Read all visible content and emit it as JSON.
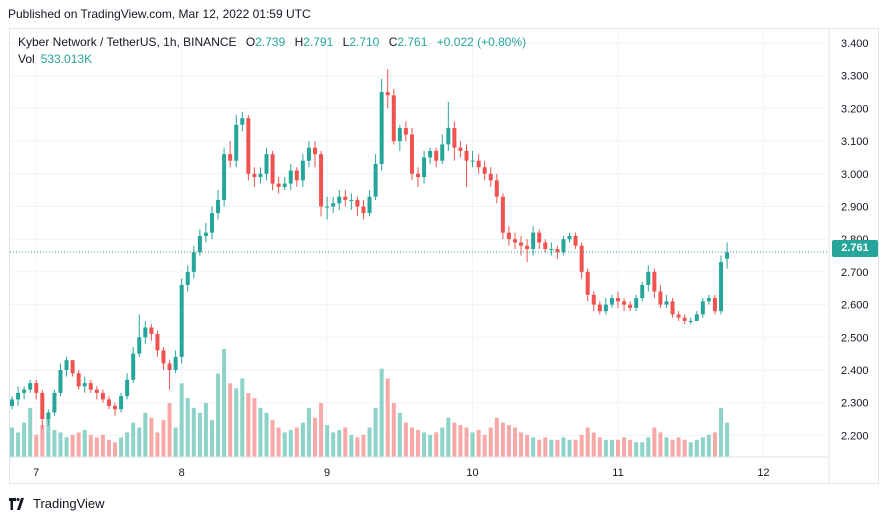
{
  "published": "Published on TradingView.com, Mar 12, 2022 01:59 UTC",
  "legend": {
    "symbol": "Kyber Network / TetherUS, 1h, BINANCE",
    "o_label": "O",
    "o_value": "2.739",
    "h_label": "H",
    "h_value": "2.791",
    "l_label": "L",
    "l_value": "2.710",
    "c_label": "C",
    "c_value": "2.761",
    "change": "+0.022 (+0.80%)",
    "vol_label": "Vol",
    "vol_value": "533.013K"
  },
  "last_price_label": "2.761",
  "branding": "TradingView",
  "colors": {
    "up": "#26a69a",
    "down": "#ef5350",
    "grid": "#f0f3fa",
    "vol_up": "#8dd3c9",
    "vol_down": "#f7a9a7"
  },
  "chart_data": {
    "type": "candlestick",
    "y_ticks": [
      "3.400",
      "3.300",
      "3.200",
      "3.100",
      "3.000",
      "2.900",
      "2.800",
      "2.700",
      "2.600",
      "2.500",
      "2.400",
      "2.300",
      "2.200"
    ],
    "ylim": [
      2.11,
      3.44
    ],
    "x_ticks": [
      {
        "label": "7",
        "index": 4
      },
      {
        "label": "8",
        "index": 28
      },
      {
        "label": "9",
        "index": 52
      },
      {
        "label": "10",
        "index": 76
      },
      {
        "label": "11",
        "index": 100
      },
      {
        "label": "12",
        "index": 124
      }
    ],
    "last_price": 2.761,
    "close": [
      2.31,
      2.33,
      2.34,
      2.36,
      2.33,
      2.25,
      2.27,
      2.33,
      2.4,
      2.43,
      2.39,
      2.35,
      2.36,
      2.34,
      2.33,
      2.31,
      2.29,
      2.28,
      2.32,
      2.37,
      2.45,
      2.5,
      2.53,
      2.51,
      2.46,
      2.42,
      2.4,
      2.44,
      2.66,
      2.7,
      2.76,
      2.81,
      2.82,
      2.88,
      2.92,
      3.06,
      3.04,
      3.15,
      3.17,
      3.0,
      2.99,
      3.0,
      3.06,
      2.97,
      2.96,
      2.97,
      3.01,
      2.98,
      3.04,
      3.08,
      3.06,
      2.9,
      2.9,
      2.91,
      2.93,
      2.92,
      2.92,
      2.9,
      2.88,
      2.93,
      3.03,
      3.25,
      3.24,
      3.1,
      3.14,
      3.12,
      3.0,
      2.99,
      3.05,
      3.07,
      3.04,
      3.09,
      3.14,
      3.08,
      3.07,
      3.04,
      3.04,
      3.02,
      3.0,
      2.98,
      2.93,
      2.82,
      2.8,
      2.79,
      2.78,
      2.77,
      2.82,
      2.79,
      2.77,
      2.77,
      2.76,
      2.8,
      2.81,
      2.78,
      2.7,
      2.63,
      2.6,
      2.58,
      2.6,
      2.62,
      2.61,
      2.6,
      2.59,
      2.62,
      2.66,
      2.7,
      2.64,
      2.6,
      2.61,
      2.57,
      2.56,
      2.55,
      2.55,
      2.57,
      2.61,
      2.62,
      2.58,
      2.73,
      2.76
    ],
    "open": [
      2.29,
      2.31,
      2.33,
      2.34,
      2.36,
      2.33,
      2.25,
      2.27,
      2.33,
      2.4,
      2.43,
      2.39,
      2.35,
      2.36,
      2.34,
      2.33,
      2.31,
      2.29,
      2.28,
      2.32,
      2.37,
      2.45,
      2.5,
      2.53,
      2.51,
      2.46,
      2.42,
      2.4,
      2.44,
      2.66,
      2.7,
      2.76,
      2.81,
      2.82,
      2.88,
      2.92,
      3.06,
      3.04,
      3.15,
      3.17,
      3.0,
      2.99,
      3.0,
      3.06,
      2.97,
      2.96,
      2.97,
      3.01,
      2.98,
      3.04,
      3.08,
      3.06,
      2.9,
      2.9,
      2.91,
      2.93,
      2.92,
      2.92,
      2.9,
      2.88,
      2.93,
      3.03,
      3.25,
      3.24,
      3.1,
      3.14,
      3.12,
      3.0,
      2.99,
      3.05,
      3.07,
      3.04,
      3.09,
      3.14,
      3.08,
      3.07,
      3.04,
      3.04,
      3.02,
      3.0,
      2.98,
      2.93,
      2.82,
      2.8,
      2.79,
      2.78,
      2.77,
      2.82,
      2.79,
      2.77,
      2.77,
      2.76,
      2.8,
      2.81,
      2.78,
      2.7,
      2.63,
      2.6,
      2.58,
      2.6,
      2.62,
      2.61,
      2.6,
      2.59,
      2.62,
      2.66,
      2.7,
      2.64,
      2.6,
      2.61,
      2.57,
      2.56,
      2.55,
      2.55,
      2.57,
      2.61,
      2.62,
      2.58,
      2.74
    ],
    "high": [
      2.32,
      2.35,
      2.35,
      2.37,
      2.37,
      2.34,
      2.28,
      2.34,
      2.42,
      2.44,
      2.43,
      2.4,
      2.38,
      2.37,
      2.35,
      2.34,
      2.32,
      2.3,
      2.33,
      2.39,
      2.47,
      2.57,
      2.55,
      2.54,
      2.52,
      2.47,
      2.43,
      2.46,
      2.68,
      2.72,
      2.78,
      2.83,
      2.85,
      2.9,
      2.95,
      3.08,
      3.1,
      3.18,
      3.19,
      3.18,
      3.02,
      3.02,
      3.08,
      3.07,
      2.99,
      2.99,
      3.03,
      3.02,
      3.06,
      3.1,
      3.1,
      3.07,
      2.93,
      2.93,
      2.95,
      2.95,
      2.94,
      2.93,
      2.92,
      2.95,
      3.06,
      3.29,
      3.32,
      3.26,
      3.15,
      3.16,
      3.14,
      3.02,
      3.07,
      3.08,
      3.08,
      3.12,
      3.22,
      3.16,
      3.1,
      3.09,
      3.07,
      3.06,
      3.04,
      3.02,
      3.0,
      2.94,
      2.84,
      2.82,
      2.81,
      2.8,
      2.84,
      2.83,
      2.8,
      2.79,
      2.78,
      2.81,
      2.82,
      2.82,
      2.79,
      2.71,
      2.64,
      2.61,
      2.62,
      2.63,
      2.64,
      2.62,
      2.61,
      2.63,
      2.67,
      2.72,
      2.71,
      2.66,
      2.63,
      2.62,
      2.58,
      2.57,
      2.56,
      2.58,
      2.62,
      2.63,
      2.63,
      2.75,
      2.79
    ],
    "low": [
      2.28,
      2.29,
      2.31,
      2.33,
      2.31,
      2.22,
      2.23,
      2.26,
      2.32,
      2.38,
      2.38,
      2.34,
      2.33,
      2.33,
      2.31,
      2.3,
      2.28,
      2.26,
      2.27,
      2.31,
      2.36,
      2.44,
      2.48,
      2.49,
      2.44,
      2.4,
      2.34,
      2.39,
      2.42,
      2.64,
      2.68,
      2.75,
      2.79,
      2.8,
      2.86,
      2.9,
      3.02,
      3.02,
      3.13,
      2.98,
      2.96,
      2.97,
      2.98,
      2.95,
      2.94,
      2.95,
      2.95,
      2.96,
      2.96,
      3.02,
      3.02,
      2.87,
      2.86,
      2.88,
      2.89,
      2.9,
      2.89,
      2.87,
      2.86,
      2.87,
      2.92,
      3.01,
      3.2,
      3.09,
      3.07,
      3.1,
      2.98,
      2.96,
      2.97,
      3.03,
      3.02,
      3.03,
      3.07,
      3.04,
      3.05,
      2.96,
      3.02,
      3.0,
      2.98,
      2.96,
      2.91,
      2.8,
      2.78,
      2.77,
      2.75,
      2.73,
      2.75,
      2.77,
      2.76,
      2.75,
      2.74,
      2.75,
      2.79,
      2.77,
      2.68,
      2.61,
      2.58,
      2.57,
      2.57,
      2.59,
      2.59,
      2.58,
      2.58,
      2.58,
      2.61,
      2.64,
      2.62,
      2.59,
      2.59,
      2.56,
      2.55,
      2.54,
      2.54,
      2.55,
      2.56,
      2.6,
      2.57,
      2.57,
      2.71
    ],
    "volume": [
      12,
      10,
      14,
      20,
      9,
      13,
      16,
      11,
      10,
      8,
      9,
      10,
      11,
      9,
      8,
      9,
      7,
      6,
      8,
      10,
      14,
      12,
      18,
      16,
      10,
      15,
      22,
      12,
      30,
      24,
      20,
      18,
      22,
      15,
      34,
      44,
      30,
      28,
      32,
      26,
      24,
      20,
      18,
      15,
      12,
      10,
      11,
      12,
      14,
      20,
      16,
      22,
      13,
      10,
      11,
      12,
      9,
      8,
      9,
      12,
      20,
      36,
      32,
      22,
      18,
      14,
      12,
      11,
      10,
      9,
      10,
      12,
      16,
      14,
      13,
      12,
      10,
      11,
      9,
      12,
      16,
      14,
      13,
      12,
      10,
      9,
      8,
      7,
      8,
      7,
      7,
      8,
      7,
      7,
      9,
      12,
      10,
      8,
      7,
      7,
      7,
      8,
      7,
      6,
      6,
      8,
      12,
      10,
      8,
      7,
      8,
      7,
      6,
      7,
      8,
      9,
      10,
      20,
      14
    ]
  }
}
